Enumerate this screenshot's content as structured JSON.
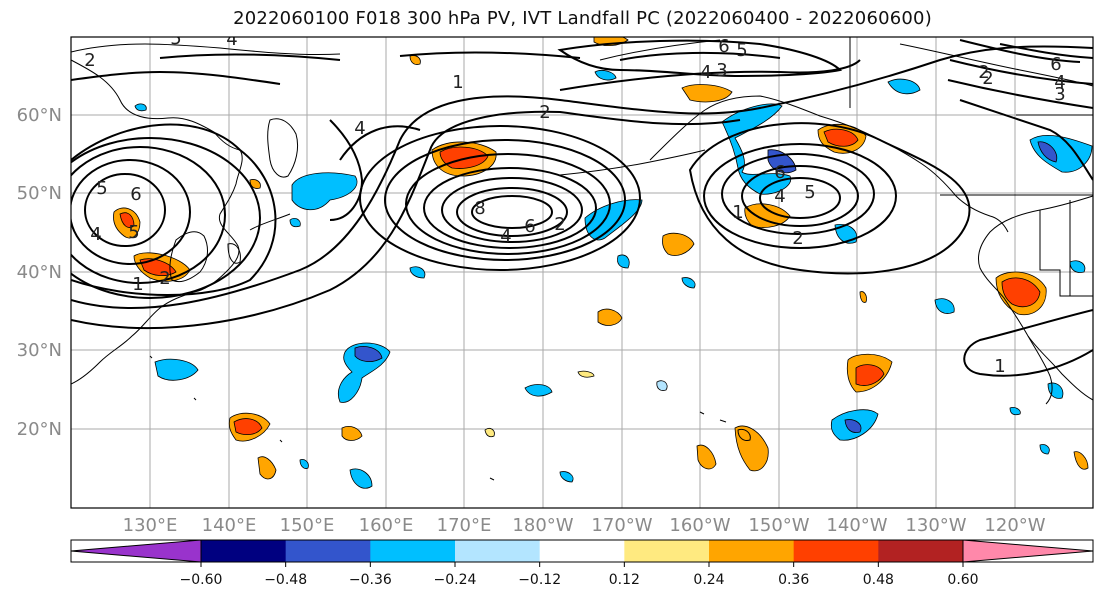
{
  "figure": {
    "title": "2022060100 F018 300 hPa PV, IVT Landfall PC (2022060400 - 2022060600)"
  },
  "map": {
    "lat_labels": [
      "60°N",
      "50°N",
      "40°N",
      "30°N",
      "20°N"
    ],
    "lon_labels": [
      "130°E",
      "140°E",
      "150°E",
      "160°E",
      "170°E",
      "180°W",
      "170°W",
      "160°W",
      "150°W",
      "140°W",
      "130°W",
      "120°W"
    ],
    "contour_labels": [
      "5",
      "4",
      "2",
      "1",
      "2",
      "4",
      "6",
      "5",
      "4",
      "3",
      "2",
      "6",
      "4",
      "3",
      "5",
      "6",
      "5",
      "4",
      "2",
      "1",
      "8",
      "6",
      "4",
      "2",
      "6",
      "5",
      "4",
      "2",
      "1",
      "2",
      "1"
    ]
  },
  "colorbar": {
    "tick_labels": [
      "−0.60",
      "−0.48",
      "−0.36",
      "−0.24",
      "−0.12",
      "0.12",
      "0.24",
      "0.36",
      "0.48",
      "0.60"
    ],
    "colors": [
      "#9933cc",
      "#000080",
      "#3355cc",
      "#00bfff",
      "#b3e5ff",
      "#ffffff",
      "#ffea80",
      "#ffa500",
      "#ff4000",
      "#b22222",
      "#ff88aa"
    ]
  },
  "colors": {
    "negative_strong": "#3355cc",
    "negative_mid": "#00bfff",
    "negative_weak": "#b3e5ff",
    "positive_weak": "#ffea80",
    "positive_mid": "#ffa500",
    "positive_strong": "#ff4000",
    "contour": "#000000",
    "grid": "#aaaaaa"
  }
}
